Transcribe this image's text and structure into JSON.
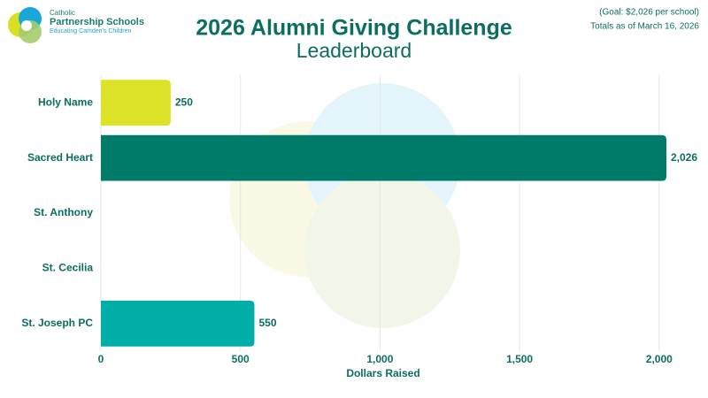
{
  "chart_data": {
    "type": "barh",
    "title": "2026 Alumni Giving Challenge",
    "subtitle": "Leaderboard",
    "annotations": [
      "(Goal: $2,026 per school)",
      "Totals as of March 16, 2026"
    ],
    "logo_text": [
      "Catholic",
      "Partnership Schools",
      "Educating Camden's Children"
    ],
    "x_label": "Dollars Raised",
    "categories": [
      "Holy Name",
      "Sacred Heart",
      "St. Anthony",
      "St. Cecilia",
      "St. Joseph PC"
    ],
    "values": [
      250,
      2026,
      0,
      0,
      550
    ],
    "value_labels": [
      "250",
      "2,026",
      null,
      null,
      "550"
    ],
    "colors": [
      "#dce227",
      "#007b6a",
      null,
      null,
      "#00aea8"
    ],
    "xlim": [
      0,
      2026
    ],
    "xticks": [
      0,
      500,
      {
        "value": 1000,
        "label": "1,000"
      },
      {
        "value": 1500,
        "label": "1,500"
      },
      {
        "value": 2000,
        "label": "2,000"
      }
    ],
    "grid": true
  }
}
